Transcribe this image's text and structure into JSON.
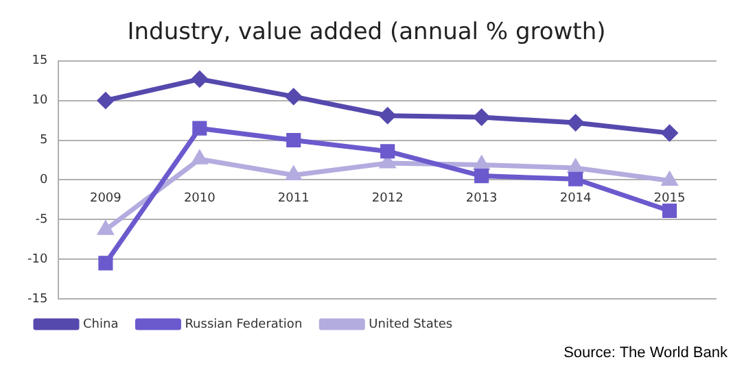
{
  "chart_data": {
    "type": "line",
    "title": "Industry, value added (annual % growth)",
    "categories": [
      "2009",
      "2010",
      "2011",
      "2012",
      "2013",
      "2014",
      "2015"
    ],
    "series": [
      {
        "name": "China",
        "color": "#5549ad",
        "marker": "diamond",
        "values": [
          10,
          12.7,
          10.5,
          8.1,
          7.9,
          7.2,
          5.9
        ]
      },
      {
        "name": "Russian Federation",
        "color": "#6a5acd",
        "marker": "square",
        "values": [
          -10.5,
          6.5,
          5,
          3.6,
          0.5,
          0.1,
          -3.9
        ]
      },
      {
        "name": "United States",
        "color": "#b3acdf",
        "marker": "triangle",
        "values": [
          -6.3,
          2.6,
          0.6,
          2.1,
          1.9,
          1.5,
          -0.1
        ]
      }
    ],
    "ylim": [
      -15,
      15
    ],
    "yticks": [
      -15,
      -10,
      -5,
      0,
      5,
      10,
      15
    ],
    "grid": "y",
    "legend": "bottom",
    "line_style": "solid",
    "annotations": [
      "Source: The World Bank"
    ]
  }
}
